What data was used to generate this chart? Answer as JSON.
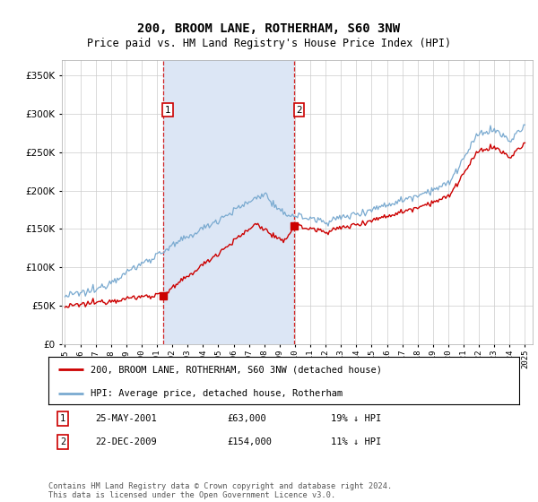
{
  "title": "200, BROOM LANE, ROTHERHAM, S60 3NW",
  "subtitle": "Price paid vs. HM Land Registry's House Price Index (HPI)",
  "legend_line1": "200, BROOM LANE, ROTHERHAM, S60 3NW (detached house)",
  "legend_line2": "HPI: Average price, detached house, Rotherham",
  "sale1_date": "25-MAY-2001",
  "sale1_price": "£63,000",
  "sale1_hpi": "19% ↓ HPI",
  "sale1_year": 2001.39,
  "sale1_value": 63000,
  "sale2_date": "22-DEC-2009",
  "sale2_price": "£154,000",
  "sale2_hpi": "11% ↓ HPI",
  "sale2_year": 2009.97,
  "sale2_value": 154000,
  "ylim": [
    0,
    370000
  ],
  "xlim": [
    1994.8,
    2025.5
  ],
  "footnote": "Contains HM Land Registry data © Crown copyright and database right 2024.\nThis data is licensed under the Open Government Licence v3.0.",
  "property_color": "#cc0000",
  "hpi_color": "#7aaad0",
  "shade_color": "#dce6f5",
  "plot_bg": "#ffffff",
  "grid_color": "#cccccc",
  "title_fontsize": 10,
  "subtitle_fontsize": 8.5
}
